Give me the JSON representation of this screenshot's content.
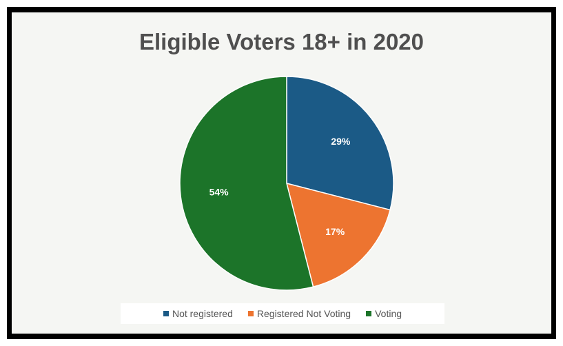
{
  "chart_data": {
    "type": "pie",
    "title": "Eligible Voters 18+ in 2020",
    "slices": [
      {
        "name": "Not registered",
        "value": 29,
        "label": "29%",
        "color": "#1b5a86"
      },
      {
        "name": "Registered Not Voting",
        "value": 17,
        "label": "17%",
        "color": "#ed7430"
      },
      {
        "name": "Voting",
        "value": 54,
        "label": "54%",
        "color": "#1c7429"
      }
    ],
    "legend_position": "bottom"
  }
}
